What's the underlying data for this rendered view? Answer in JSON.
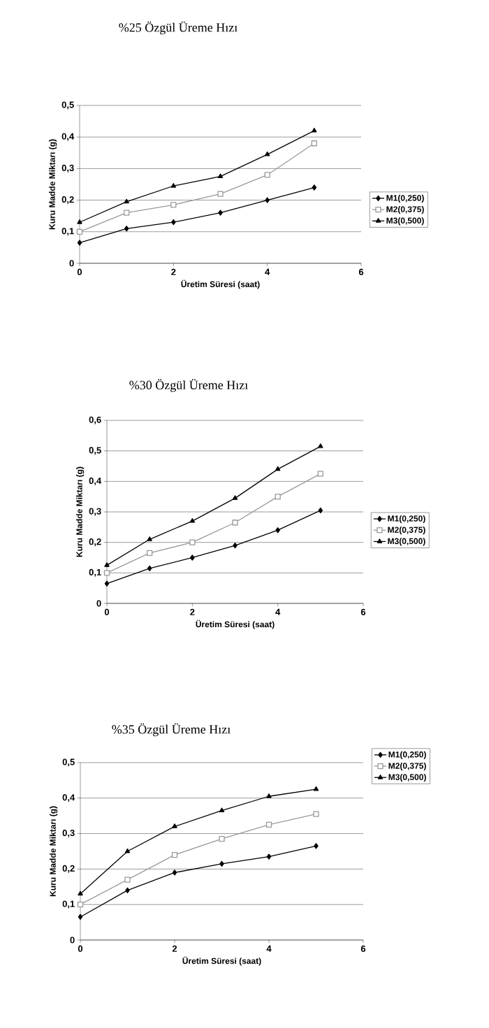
{
  "chart_data": [
    {
      "type": "line",
      "title": "%25 Özgül Üreme Hızı",
      "xlabel": "Üretim Süresi (saat)",
      "ylabel": "Kuru Madde Miktarı (g)",
      "x": [
        0,
        1,
        2,
        3,
        4,
        5
      ],
      "series": [
        {
          "name": "M1(0,250)",
          "color": "#000000",
          "marker": "diamond",
          "values": [
            0.065,
            0.11,
            0.13,
            0.16,
            0.2,
            0.24
          ]
        },
        {
          "name": "M2(0,375)",
          "color": "#999999",
          "marker": "square",
          "values": [
            0.1,
            0.16,
            0.185,
            0.22,
            0.28,
            0.38
          ]
        },
        {
          "name": "M3(0,500)",
          "color": "#000000",
          "marker": "triangle",
          "values": [
            0.13,
            0.195,
            0.245,
            0.275,
            0.345,
            0.42
          ]
        }
      ],
      "xlim": [
        0,
        6
      ],
      "xticks": [
        0,
        2,
        4,
        6
      ],
      "ylim": [
        0,
        0.5
      ],
      "yticks": [
        0,
        {
          "value": 0.1,
          "label": "0,1"
        },
        {
          "value": 0.2,
          "label": "0,2"
        },
        {
          "value": 0.3,
          "label": "0,3"
        },
        {
          "value": 0.4,
          "label": "0,4"
        },
        {
          "value": 0.5,
          "label": "0,5"
        }
      ],
      "grid": "y",
      "legend": "right"
    },
    {
      "type": "line",
      "title": "%30 Özgül Üreme Hızı",
      "xlabel": "Üretim Süresi (saat)",
      "ylabel": "Kuru Madde Miktarı (g)",
      "x": [
        0,
        1,
        2,
        3,
        4,
        5
      ],
      "series": [
        {
          "name": "M1(0,250)",
          "color": "#000000",
          "marker": "diamond",
          "values": [
            0.065,
            0.115,
            0.15,
            0.19,
            0.24,
            0.305
          ]
        },
        {
          "name": "M2(0,375)",
          "color": "#999999",
          "marker": "square",
          "values": [
            0.1,
            0.165,
            0.2,
            0.265,
            0.35,
            0.425
          ]
        },
        {
          "name": "M3(0,500)",
          "color": "#000000",
          "marker": "triangle",
          "values": [
            0.125,
            0.21,
            0.27,
            0.345,
            0.44,
            0.515
          ]
        }
      ],
      "xlim": [
        0,
        6
      ],
      "xticks": [
        0,
        2,
        4,
        6
      ],
      "ylim": [
        0,
        0.6
      ],
      "yticks": [
        0,
        {
          "value": 0.1,
          "label": "0,1"
        },
        {
          "value": 0.2,
          "label": "0,2"
        },
        {
          "value": 0.3,
          "label": "0,3"
        },
        {
          "value": 0.4,
          "label": "0,4"
        },
        {
          "value": 0.5,
          "label": "0,5"
        },
        {
          "value": 0.6,
          "label": "0,6"
        }
      ],
      "grid": "y",
      "legend": "right"
    },
    {
      "type": "line",
      "title": "%35 Özgül Üreme Hızı",
      "xlabel": "Üretim Süresi (saat)",
      "ylabel": "Kuru Madde Miktarı (g)",
      "x": [
        0,
        1,
        2,
        3,
        4,
        5
      ],
      "series": [
        {
          "name": "M1(0,250)",
          "color": "#000000",
          "marker": "diamond",
          "values": [
            0.065,
            0.14,
            0.19,
            0.215,
            0.235,
            0.265
          ]
        },
        {
          "name": "M2(0,375)",
          "color": "#999999",
          "marker": "square",
          "values": [
            0.1,
            0.17,
            0.24,
            0.285,
            0.325,
            0.355
          ]
        },
        {
          "name": "M3(0,500)",
          "color": "#000000",
          "marker": "triangle",
          "values": [
            0.13,
            0.25,
            0.32,
            0.365,
            0.405,
            0.425
          ]
        }
      ],
      "xlim": [
        0,
        6
      ],
      "xticks": [
        0,
        2,
        4,
        6
      ],
      "ylim": [
        0,
        0.5
      ],
      "yticks": [
        0,
        {
          "value": 0.1,
          "label": "0,1"
        },
        {
          "value": 0.2,
          "label": "0,2"
        },
        {
          "value": 0.3,
          "label": "0,3"
        },
        {
          "value": 0.4,
          "label": "0,4"
        },
        {
          "value": 0.5,
          "label": "0,5"
        }
      ],
      "grid": "y",
      "legend": "right"
    }
  ]
}
